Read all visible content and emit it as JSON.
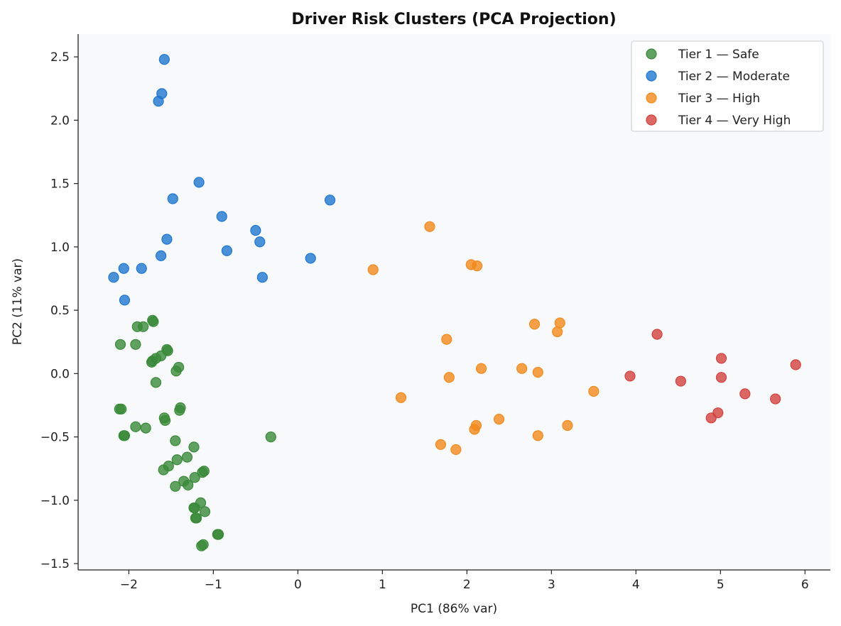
{
  "chart_data": {
    "type": "scatter",
    "title": "Driver Risk Clusters (PCA Projection)",
    "xlabel": "PC1 (86% var)",
    "ylabel": "PC2 (11% var)",
    "xlim": [
      -2.6,
      6.3
    ],
    "ylim": [
      -1.55,
      2.68
    ],
    "xticks": [
      -2,
      -1,
      0,
      1,
      2,
      3,
      4,
      5,
      6
    ],
    "yticks": [
      -1.5,
      -1.0,
      -0.5,
      0.0,
      0.5,
      1.0,
      1.5,
      2.0,
      2.5
    ],
    "xtick_labels": [
      "−2",
      "−1",
      "0",
      "1",
      "2",
      "3",
      "4",
      "5",
      "6"
    ],
    "ytick_labels": [
      "−1.5",
      "−1.0",
      "−0.5",
      "0.0",
      "0.5",
      "1.0",
      "1.5",
      "2.0",
      "2.5"
    ],
    "grid": false,
    "legend_position": "top-right",
    "series": [
      {
        "name": "Tier 1 — Safe",
        "color": "#3a8a3a",
        "points": [
          [
            -2.1,
            0.23
          ],
          [
            -1.92,
            0.23
          ],
          [
            -1.9,
            0.37
          ],
          [
            -1.83,
            0.37
          ],
          [
            -1.72,
            0.42
          ],
          [
            -1.71,
            0.41
          ],
          [
            -1.55,
            0.19
          ],
          [
            -1.54,
            0.18
          ],
          [
            -1.62,
            0.14
          ],
          [
            -1.68,
            0.12
          ],
          [
            -1.72,
            0.1
          ],
          [
            -1.73,
            0.09
          ],
          [
            -1.41,
            0.05
          ],
          [
            -1.44,
            0.02
          ],
          [
            -1.68,
            -0.07
          ],
          [
            -2.11,
            -0.28
          ],
          [
            -2.09,
            -0.28
          ],
          [
            -1.39,
            -0.27
          ],
          [
            -1.4,
            -0.29
          ],
          [
            -1.58,
            -0.35
          ],
          [
            -1.57,
            -0.37
          ],
          [
            -1.92,
            -0.42
          ],
          [
            -1.8,
            -0.43
          ],
          [
            -2.06,
            -0.49
          ],
          [
            -2.05,
            -0.49
          ],
          [
            -1.45,
            -0.53
          ],
          [
            -1.23,
            -0.58
          ],
          [
            -1.31,
            -0.66
          ],
          [
            -1.43,
            -0.68
          ],
          [
            -1.53,
            -0.73
          ],
          [
            -1.59,
            -0.76
          ],
          [
            -1.13,
            -0.78
          ],
          [
            -1.11,
            -0.77
          ],
          [
            -1.22,
            -0.82
          ],
          [
            -1.35,
            -0.85
          ],
          [
            -1.3,
            -0.88
          ],
          [
            -1.45,
            -0.89
          ],
          [
            -1.15,
            -1.02
          ],
          [
            -1.23,
            -1.06
          ],
          [
            -1.22,
            -1.06
          ],
          [
            -1.1,
            -1.09
          ],
          [
            -1.21,
            -1.14
          ],
          [
            -1.2,
            -1.14
          ],
          [
            -0.95,
            -1.27
          ],
          [
            -0.94,
            -1.27
          ],
          [
            -1.14,
            -1.36
          ],
          [
            -1.12,
            -1.35
          ],
          [
            -0.32,
            -0.5
          ]
        ]
      },
      {
        "name": "Tier 2 — Moderate",
        "color": "#1f77d0",
        "points": [
          [
            -1.58,
            2.48
          ],
          [
            -1.61,
            2.21
          ],
          [
            -1.65,
            2.15
          ],
          [
            -1.17,
            1.51
          ],
          [
            -1.48,
            1.38
          ],
          [
            -0.9,
            1.24
          ],
          [
            -0.5,
            1.13
          ],
          [
            0.38,
            1.37
          ],
          [
            -1.55,
            1.06
          ],
          [
            -0.84,
            0.97
          ],
          [
            -0.45,
            1.04
          ],
          [
            -1.62,
            0.93
          ],
          [
            0.15,
            0.91
          ],
          [
            -2.06,
            0.83
          ],
          [
            -1.85,
            0.83
          ],
          [
            -2.18,
            0.76
          ],
          [
            -0.42,
            0.76
          ],
          [
            -2.05,
            0.58
          ]
        ]
      },
      {
        "name": "Tier 3 — High",
        "color": "#f28a1d",
        "points": [
          [
            1.56,
            1.16
          ],
          [
            0.89,
            0.82
          ],
          [
            2.05,
            0.86
          ],
          [
            2.12,
            0.85
          ],
          [
            2.8,
            0.39
          ],
          [
            3.1,
            0.4
          ],
          [
            3.07,
            0.33
          ],
          [
            1.76,
            0.27
          ],
          [
            2.17,
            0.04
          ],
          [
            2.65,
            0.04
          ],
          [
            2.84,
            0.01
          ],
          [
            1.79,
            -0.03
          ],
          [
            1.22,
            -0.19
          ],
          [
            3.5,
            -0.14
          ],
          [
            2.38,
            -0.36
          ],
          [
            2.11,
            -0.41
          ],
          [
            2.09,
            -0.44
          ],
          [
            3.19,
            -0.41
          ],
          [
            2.84,
            -0.49
          ],
          [
            1.69,
            -0.56
          ],
          [
            1.87,
            -0.6
          ]
        ]
      },
      {
        "name": "Tier 4 — Very High",
        "color": "#d2423f",
        "points": [
          [
            4.25,
            0.31
          ],
          [
            5.01,
            0.12
          ],
          [
            5.89,
            0.07
          ],
          [
            3.93,
            -0.02
          ],
          [
            4.53,
            -0.06
          ],
          [
            5.01,
            -0.03
          ],
          [
            5.29,
            -0.16
          ],
          [
            5.65,
            -0.2
          ],
          [
            4.97,
            -0.31
          ],
          [
            4.89,
            -0.35
          ]
        ]
      }
    ]
  }
}
